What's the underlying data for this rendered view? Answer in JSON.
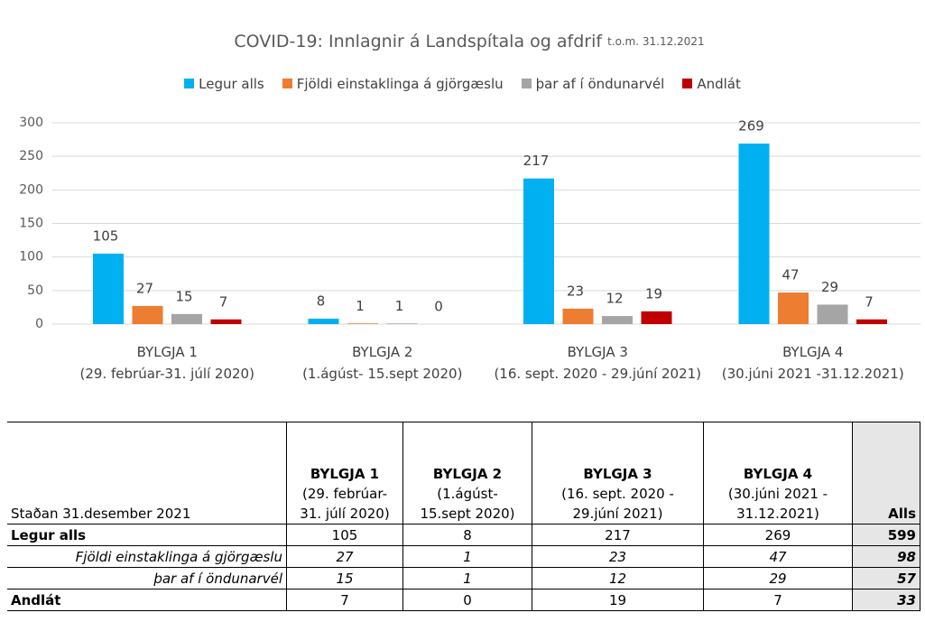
{
  "chart_data": {
    "type": "bar",
    "title": "COVID-19: Innlagnir á Landspítala og afdrif",
    "subtitle": "t.o.m. 31.12.2021",
    "categories": [
      "BYLGJA 1\n(29. febrúar-31. júlí 2020)",
      "BYLGJA 2\n(1.ágúst- 15.sept 2020)",
      "BYLGJA 3\n(16. sept. 2020 - 29.júní 2021)",
      "BYLGJA 4\n(30.júni 2021 -31.12.2021)"
    ],
    "series": [
      {
        "name": "Legur alls",
        "color": "#00b0f0",
        "values": [
          105,
          8,
          217,
          269
        ]
      },
      {
        "name": "Fjöldi einstaklinga á gjörgæslu",
        "color": "#ed7d31",
        "values": [
          27,
          1,
          23,
          47
        ]
      },
      {
        "name": "þar af í öndunarvél",
        "color": "#a5a5a5",
        "values": [
          15,
          1,
          12,
          29
        ]
      },
      {
        "name": "Andlát",
        "color": "#c00000",
        "values": [
          7,
          0,
          19,
          7
        ]
      }
    ],
    "ylim": [
      0,
      300
    ],
    "yticks": [
      0,
      50,
      100,
      150,
      200,
      250,
      300
    ],
    "grid": true,
    "legend": "top"
  },
  "table": {
    "header": [
      "Staðan 31.desember 2021",
      "BYLGJA 1",
      "(29. febrúar-\n31. júlí 2020)",
      "BYLGJA 2",
      "(1.ágúst-\n15.sept 2020)",
      "BYLGJA 3",
      "(16. sept. 2020 -\n29.júní 2021)",
      "BYLGJA 4",
      "(30.júni 2021 -\n31.12.2021)",
      "Alls"
    ],
    "rows": [
      [
        "Legur alls",
        105,
        8,
        217,
        269,
        599
      ],
      [
        "Fjöldi einstaklinga á gjörgæslu",
        27,
        1,
        23,
        47,
        98
      ],
      [
        "þar af í öndunarvél",
        15,
        1,
        12,
        29,
        57
      ],
      [
        "Andlát",
        7,
        0,
        19,
        7,
        33
      ]
    ]
  }
}
